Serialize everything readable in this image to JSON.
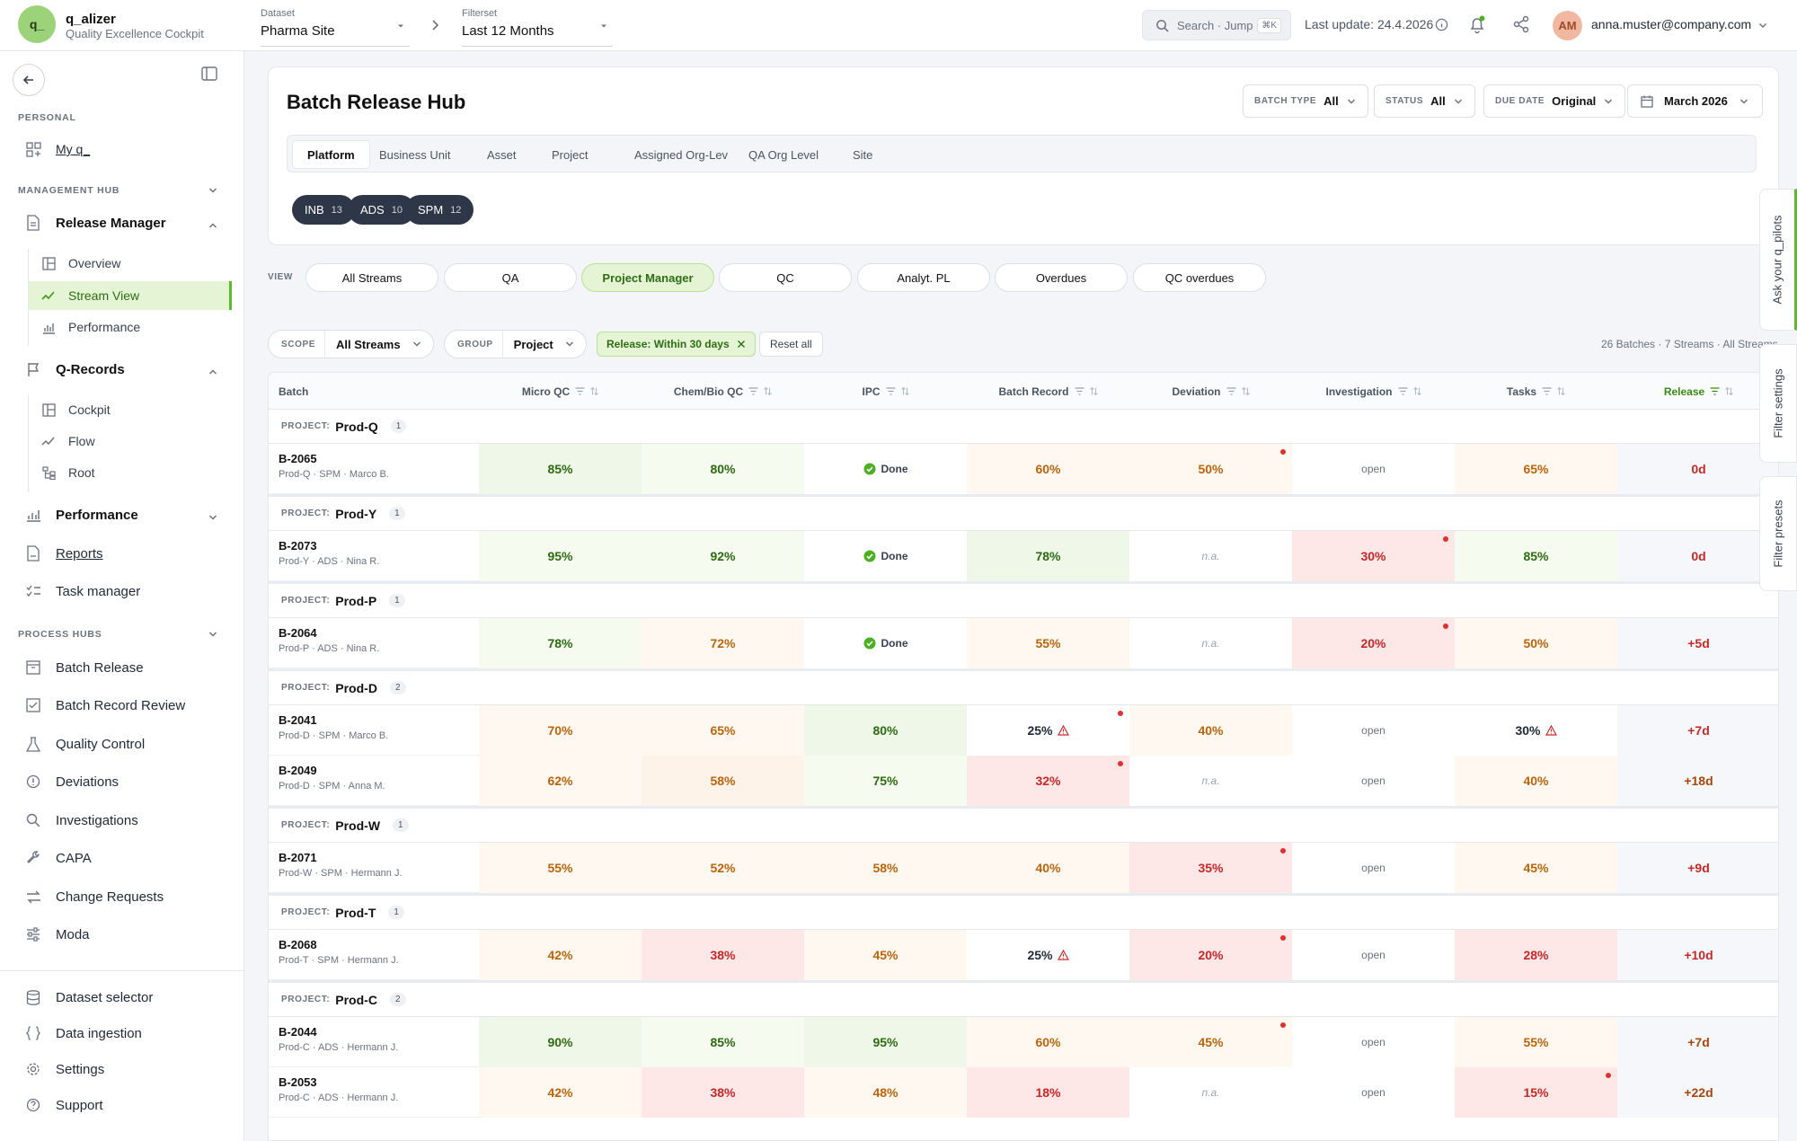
{
  "app": {
    "logo": "q_",
    "name": "q_alizer",
    "subtitle": "Quality Excellence Cockpit"
  },
  "dataset": {
    "caption": "Dataset",
    "value": "Pharma Site"
  },
  "filterset": {
    "caption": "Filterset",
    "value": "Last 12 Months"
  },
  "search": {
    "placeholder": "Search · Jump",
    "shortcut": "⌘K"
  },
  "last_update": "Last update: 24.4.2026",
  "user": {
    "initials": "AM",
    "email": "anna.muster@company.com"
  },
  "sidebar": {
    "personal_header": "PERSONAL",
    "my": "My q_",
    "mgmt_header": "MANAGEMENT HUB",
    "release_manager": "Release Manager",
    "rm_items": [
      "Overview",
      "Stream View",
      "Performance"
    ],
    "qrecords": "Q-Records",
    "qr_items": [
      "Cockpit",
      "Flow",
      "Root"
    ],
    "performance": "Performance",
    "reports": "Reports",
    "task_manager": "Task manager",
    "process_header": "PROCESS HUBS",
    "process_items": [
      "Batch Release",
      "Batch Record Review",
      "Quality Control",
      "Deviations",
      "Investigations",
      "CAPA",
      "Change Requests",
      "Moda"
    ],
    "bottom_items": [
      "Dataset selector",
      "Data ingestion",
      "Settings",
      "Support"
    ]
  },
  "page": {
    "title": "Batch Release Hub",
    "filters": {
      "batch_type": {
        "cap": "BATCH TYPE",
        "val": "All"
      },
      "status": {
        "cap": "STATUS",
        "val": "All"
      },
      "due_date": {
        "cap": "DUE DATE",
        "val": "Original"
      },
      "month": "March 2026"
    },
    "tabs": [
      "Platform",
      "Business Unit",
      "Asset",
      "Project",
      "Assigned Org-Lev",
      "QA Org Level",
      "Site"
    ],
    "pills": [
      {
        "label": "INB",
        "n": "13"
      },
      {
        "label": "ADS",
        "n": "10"
      },
      {
        "label": "SPM",
        "n": "12"
      }
    ]
  },
  "view": {
    "label": "VIEW",
    "buttons": [
      "All Streams",
      "QA",
      "Project Manager",
      "QC",
      "Analyt. PL",
      "Overdues",
      "QC overdues"
    ]
  },
  "scope": {
    "cap": "SCOPE",
    "val": "All Streams"
  },
  "group": {
    "cap": "GROUP",
    "val": "Project"
  },
  "active_filter": "Release: Within 30 days",
  "reset": "Reset all",
  "count_text": "26 Batches · 7 Streams · All Streams",
  "table": {
    "headers": [
      "Batch",
      "Micro QC",
      "Chem/Bio QC",
      "IPC",
      "Batch Record",
      "Deviation",
      "Investigation",
      "Tasks",
      "Release"
    ],
    "group_label": "PROJECT:",
    "groups": [
      {
        "name": "Prod-Q",
        "count": "1",
        "rows": [
          {
            "id": "B-2065",
            "meta": "Prod-Q · SPM · Marco B.",
            "cells": [
              "85%",
              "80%",
              "Done",
              "60%",
              "50%",
              "open",
              "65%",
              "0d"
            ]
          }
        ]
      },
      {
        "name": "Prod-Y",
        "count": "1",
        "rows": [
          {
            "id": "B-2073",
            "meta": "Prod-Y · ADS · Nina R.",
            "cells": [
              "95%",
              "92%",
              "Done",
              "78%",
              "n.a.",
              "30%",
              "85%",
              "0d"
            ]
          }
        ]
      },
      {
        "name": "Prod-P",
        "count": "1",
        "rows": [
          {
            "id": "B-2064",
            "meta": "Prod-P · ADS · Nina R.",
            "cells": [
              "78%",
              "72%",
              "Done",
              "55%",
              "n.a.",
              "20%",
              "50%",
              "+5d"
            ]
          }
        ]
      },
      {
        "name": "Prod-D",
        "count": "2",
        "rows": [
          {
            "id": "B-2041",
            "meta": "Prod-D · SPM · Marco B.",
            "cells": [
              "70%",
              "65%",
              "80%",
              "25%",
              "40%",
              "open",
              "30%",
              "+7d"
            ]
          },
          {
            "id": "B-2049",
            "meta": "Prod-D · SPM · Anna M.",
            "cells": [
              "62%",
              "58%",
              "75%",
              "32%",
              "n.a.",
              "open",
              "40%",
              "+18d"
            ]
          }
        ]
      },
      {
        "name": "Prod-W",
        "count": "1",
        "rows": [
          {
            "id": "B-2071",
            "meta": "Prod-W · SPM · Hermann J.",
            "cells": [
              "55%",
              "52%",
              "58%",
              "40%",
              "35%",
              "open",
              "45%",
              "+9d"
            ]
          }
        ]
      },
      {
        "name": "Prod-T",
        "count": "1",
        "rows": [
          {
            "id": "B-2068",
            "meta": "Prod-T · SPM · Hermann J.",
            "cells": [
              "42%",
              "38%",
              "45%",
              "25%",
              "20%",
              "open",
              "28%",
              "+10d"
            ]
          }
        ]
      },
      {
        "name": "Prod-C",
        "count": "2",
        "rows": [
          {
            "id": "B-2044",
            "meta": "Prod-C · ADS · Hermann J.",
            "cells": [
              "90%",
              "85%",
              "95%",
              "60%",
              "45%",
              "open",
              "55%",
              "+7d"
            ]
          },
          {
            "id": "B-2053",
            "meta": "Prod-C · ADS · Hermann J.",
            "cells": [
              "42%",
              "38%",
              "48%",
              "18%",
              "n.a.",
              "open",
              "15%",
              "+22d"
            ]
          }
        ]
      }
    ]
  },
  "side_tabs": [
    "Ask your q_pilots",
    "Filter settings",
    "Filter presets"
  ]
}
